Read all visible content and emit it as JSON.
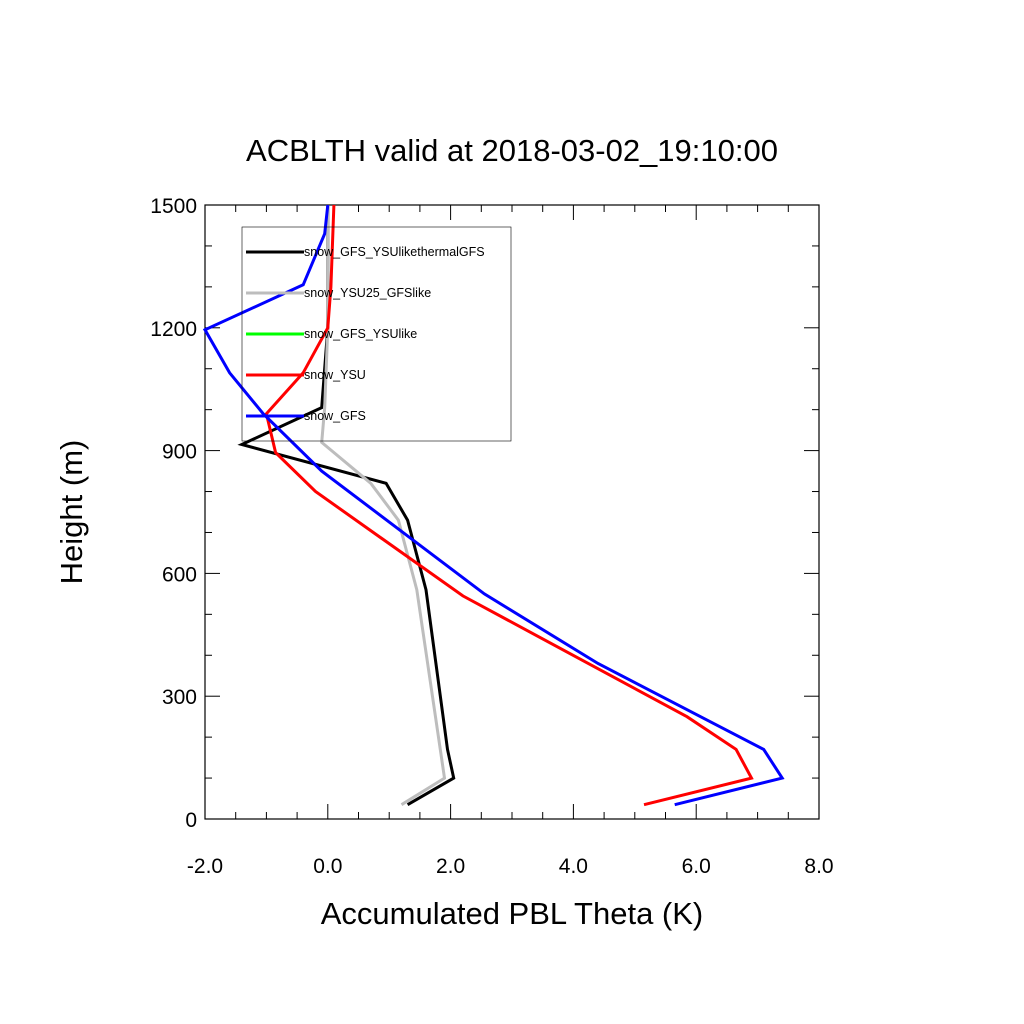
{
  "chart_data": {
    "type": "line",
    "title": "ACBLTH valid at 2018-03-02_19:10:00",
    "xlabel": "Accumulated PBL Theta (K)",
    "ylabel": "Height (m)",
    "xlim": [
      -2.0,
      8.0
    ],
    "ylim": [
      0,
      1500
    ],
    "x_ticks": [
      -2.0,
      0.0,
      2.0,
      4.0,
      6.0,
      8.0
    ],
    "x_tick_labels": [
      "-2.0",
      "0.0",
      "2.0",
      "4.0",
      "6.0",
      "8.0"
    ],
    "y_ticks": [
      0,
      300,
      600,
      900,
      1200,
      1500
    ],
    "y_tick_labels": [
      "0",
      "300",
      "600",
      "900",
      "1200",
      "1500"
    ],
    "grid": false,
    "legend_position": "top-left",
    "series": [
      {
        "name": "snow_GFS_YSUlikethermalGFS",
        "color": "#000000",
        "points": [
          [
            1.3,
            35
          ],
          [
            2.05,
            100
          ],
          [
            1.95,
            170
          ],
          [
            1.6,
            560
          ],
          [
            1.3,
            730
          ],
          [
            0.95,
            820
          ],
          [
            -1.4,
            915
          ],
          [
            -0.1,
            1005
          ],
          [
            0.0,
            1200
          ],
          [
            0.0,
            1500
          ]
        ]
      },
      {
        "name": "snow_YSU25_GFSlike",
        "color": "#bdbdbd",
        "points": [
          [
            1.2,
            35
          ],
          [
            1.9,
            100
          ],
          [
            1.45,
            560
          ],
          [
            1.15,
            730
          ],
          [
            0.7,
            820
          ],
          [
            -0.1,
            920
          ],
          [
            -0.05,
            1005
          ],
          [
            0.0,
            1200
          ],
          [
            0.0,
            1500
          ]
        ]
      },
      {
        "name": "snow_GFS_YSUlike",
        "color": "#00ff00",
        "points": []
      },
      {
        "name": "snow_YSU",
        "color": "#ff0000",
        "points": [
          [
            5.15,
            35
          ],
          [
            6.9,
            100
          ],
          [
            6.65,
            170
          ],
          [
            5.85,
            250
          ],
          [
            2.2,
            545
          ],
          [
            -0.2,
            800
          ],
          [
            -0.85,
            895
          ],
          [
            -1.0,
            990
          ],
          [
            -0.4,
            1090
          ],
          [
            0.0,
            1200
          ],
          [
            0.05,
            1300
          ],
          [
            0.1,
            1500
          ]
        ]
      },
      {
        "name": "snow_GFS",
        "color": "#0000ff",
        "points": [
          [
            5.65,
            35
          ],
          [
            7.4,
            100
          ],
          [
            7.1,
            170
          ],
          [
            6.2,
            240
          ],
          [
            4.4,
            380
          ],
          [
            2.55,
            550
          ],
          [
            -0.1,
            850
          ],
          [
            -1.05,
            990
          ],
          [
            -1.6,
            1090
          ],
          [
            -2.0,
            1195
          ],
          [
            -0.4,
            1305
          ],
          [
            -0.05,
            1430
          ],
          [
            0.0,
            1500
          ]
        ]
      }
    ]
  }
}
